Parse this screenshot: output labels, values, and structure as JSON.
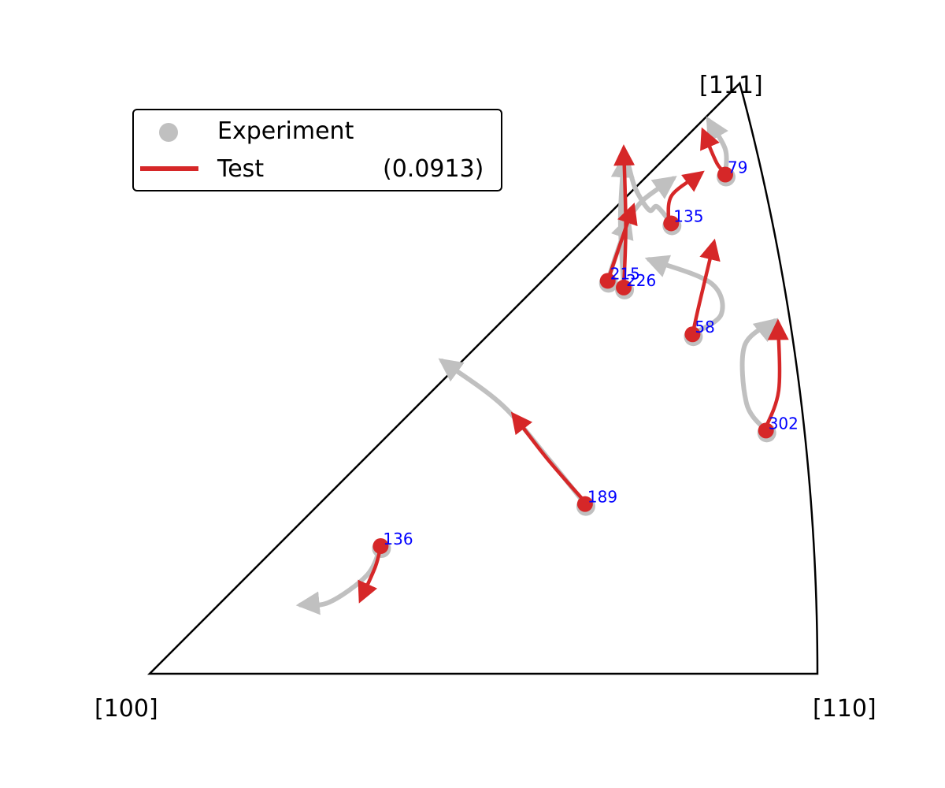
{
  "chart_data": {
    "type": "inverse-pole-figure",
    "corners": {
      "origin": "[100]",
      "right": "[110]",
      "top": "[111]"
    },
    "legend": [
      {
        "name": "Experiment",
        "marker": "circle",
        "color": "#c0c0c0"
      },
      {
        "name": "Test",
        "marker": "line",
        "color": "#d62728",
        "score": "(0.0913)"
      }
    ],
    "colors": {
      "experiment": "#c0c0c0",
      "test": "#d62728",
      "label": "#0000ff",
      "boundary": "#000000"
    },
    "grains": [
      {
        "id": "79",
        "start": [
          0.862,
          0.747
        ],
        "experiment_path": [
          [
            0.862,
            0.747
          ],
          [
            0.862,
            0.785
          ],
          [
            0.837,
            0.828
          ]
        ],
        "test_path": [
          [
            0.866,
            0.747
          ],
          [
            0.85,
            0.763
          ],
          [
            0.829,
            0.812
          ]
        ]
      },
      {
        "id": "135",
        "start": [
          0.781,
          0.674
        ],
        "experiment_path": [
          [
            0.781,
            0.674
          ],
          [
            0.76,
            0.699
          ],
          [
            0.748,
            0.694
          ],
          [
            0.727,
            0.727
          ],
          [
            0.713,
            0.771
          ],
          [
            0.71,
            0.718
          ],
          [
            0.707,
            0.672
          ],
          [
            0.739,
            0.709
          ],
          [
            0.784,
            0.741
          ]
        ],
        "test_path": [
          [
            0.777,
            0.677
          ],
          [
            0.782,
            0.716
          ],
          [
            0.826,
            0.749
          ]
        ]
      },
      {
        "id": "215",
        "start": [
          0.686,
          0.588
        ],
        "experiment_path": [
          [
            0.686,
            0.588
          ],
          [
            0.697,
            0.622
          ],
          [
            0.717,
            0.68
          ]
        ],
        "test_path": [
          [
            0.686,
            0.588
          ],
          [
            0.707,
            0.65
          ],
          [
            0.724,
            0.699
          ]
        ]
      },
      {
        "id": "226",
        "start": [
          0.71,
          0.578
        ],
        "experiment_path": [
          [
            0.71,
            0.578
          ],
          [
            0.705,
            0.68
          ],
          [
            0.71,
            0.771
          ]
        ],
        "test_path": [
          [
            0.71,
            0.578
          ],
          [
            0.713,
            0.67
          ],
          [
            0.71,
            0.786
          ]
        ]
      },
      {
        "id": "58",
        "start": [
          0.813,
          0.508
        ],
        "experiment_path": [
          [
            0.813,
            0.508
          ],
          [
            0.856,
            0.538
          ],
          [
            0.84,
            0.585
          ],
          [
            0.748,
            0.62
          ]
        ],
        "test_path": [
          [
            0.813,
            0.508
          ],
          [
            0.823,
            0.553
          ],
          [
            0.845,
            0.645
          ]
        ]
      },
      {
        "id": "302",
        "start": [
          0.923,
          0.364
        ],
        "experiment_path": [
          [
            0.923,
            0.364
          ],
          [
            0.894,
            0.404
          ],
          [
            0.891,
            0.491
          ],
          [
            0.936,
            0.528
          ]
        ],
        "test_path": [
          [
            0.92,
            0.363
          ],
          [
            0.942,
            0.424
          ],
          [
            0.941,
            0.525
          ]
        ]
      },
      {
        "id": "189",
        "start": [
          0.652,
          0.254
        ],
        "experiment_path": [
          [
            0.652,
            0.254
          ],
          [
            0.597,
            0.322
          ],
          [
            0.527,
            0.403
          ],
          [
            0.438,
            0.468
          ]
        ],
        "test_path": [
          [
            0.652,
            0.257
          ],
          [
            0.596,
            0.321
          ],
          [
            0.545,
            0.387
          ]
        ]
      },
      {
        "id": "136",
        "start": [
          0.346,
          0.191
        ],
        "experiment_path": [
          [
            0.346,
            0.191
          ],
          [
            0.326,
            0.148
          ],
          [
            0.269,
            0.107
          ],
          [
            0.226,
            0.103
          ]
        ],
        "test_path": [
          [
            0.346,
            0.191
          ],
          [
            0.338,
            0.16
          ],
          [
            0.316,
            0.111
          ]
        ]
      }
    ]
  }
}
